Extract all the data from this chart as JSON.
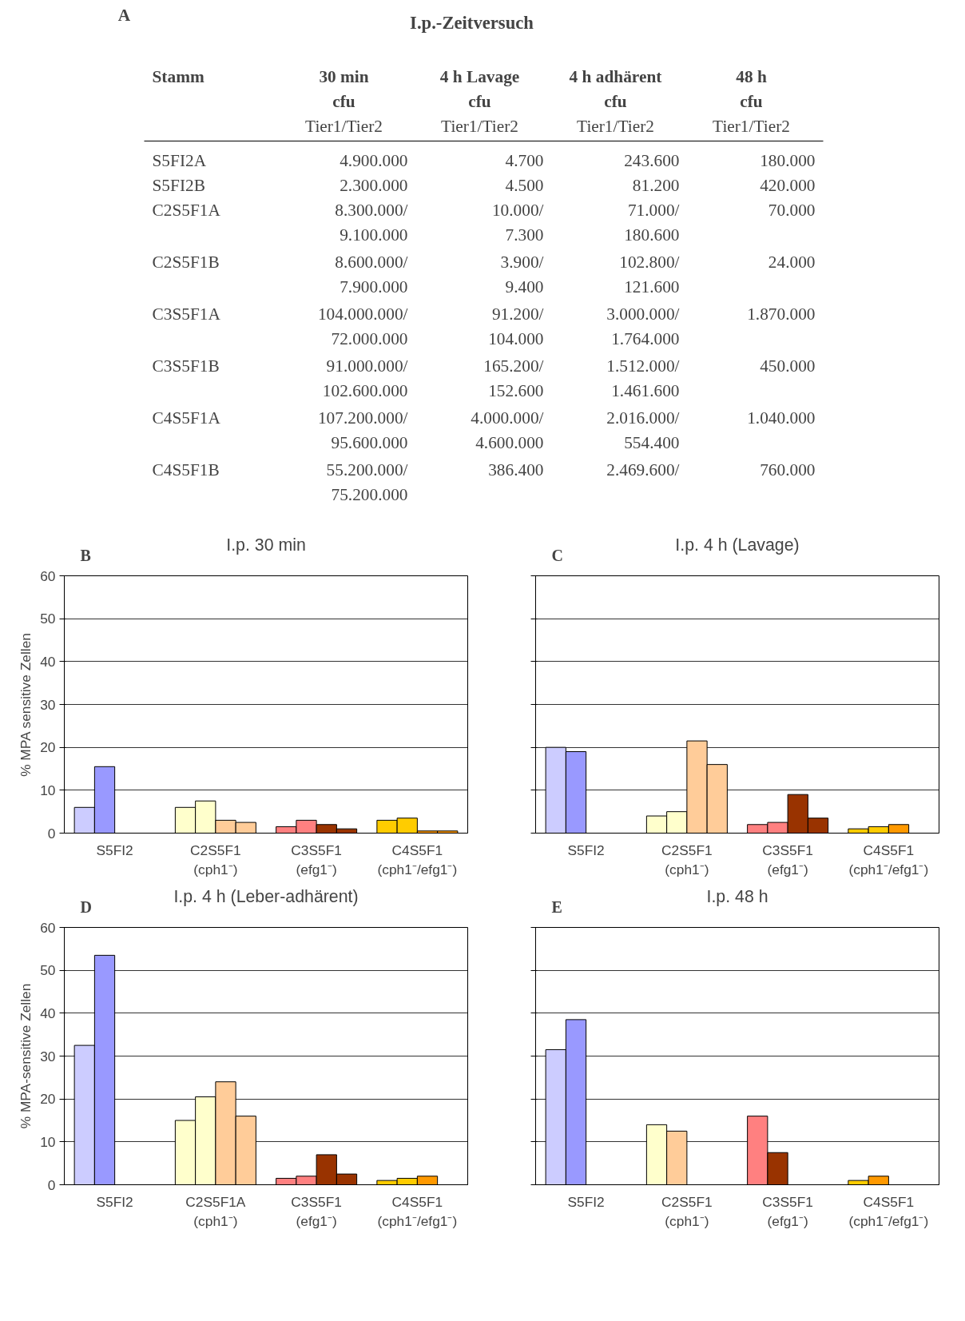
{
  "chart_data": [
    {
      "type": "other",
      "title": "I.p.-Zeitversuch",
      "annotations": [
        "A",
        "Stamm",
        "30 min\ncfu\nTier1/Tier2",
        "4 h Lavage\ncfu\nTier1/Tier2",
        "4 h adhärent\ncfu\nTier1/Tier2",
        "48 h\ncfu\nTier1/Tier2",
        "S5FI2A",
        "4.900.000",
        "4.700",
        "243.600",
        "180.000",
        "S5FI2B",
        "2.300.000",
        "4.500",
        "81.200",
        "420.000",
        "C2S5F1A",
        "8.300.000/\n9.100.000",
        "10.000/\n7.300",
        "71.000/\n180.600",
        "70.000",
        "C2S5F1B",
        "8.600.000/\n7.900.000",
        "3.900/\n9.400",
        "102.800/\n121.600",
        "24.000",
        "C3S5F1A",
        "104.000.000/\n72.000.000",
        "91.200/\n104.000",
        "3.000.000/\n1.764.000",
        "1.870.000",
        "C3S5F1B",
        "91.000.000/\n102.600.000",
        "165.200/\n152.600",
        "1.512.000/\n1.461.600",
        "450.000",
        "C4S5F1A",
        "107.200.000/\n95.600.000",
        "4.000.000/\n4.600.000",
        "2.016.000/\n554.400",
        "1.040.000",
        "C4S5F1B",
        "55.200.000/\n75.200.000",
        "386.400",
        "2.469.600/",
        "760.000"
      ]
    },
    {
      "type": "bar",
      "title": "I.p. 30 min",
      "ylabel": "% MPA sensitive Zellen",
      "annotations": [
        "B"
      ],
      "categories": [
        "S5FI2",
        "C2S5F1\n(cph1⁻)",
        "C3S5F1\n(efg1⁻)",
        "C4S5F1\n(cph1⁻/efg1⁻)"
      ],
      "ylim": [
        0,
        60
      ],
      "yticks": [
        0,
        10,
        20,
        30,
        40,
        50,
        60
      ],
      "grid": "y",
      "series": [
        {
          "values": [
            6,
            6,
            1.5,
            3
          ],
          "colors": [
            "#ccccff",
            "#ffffcc",
            "#ff8080",
            "#ffcc00"
          ]
        },
        {
          "values": [
            15.5,
            7.5,
            3,
            3.5
          ],
          "colors": [
            "#9999ff",
            "#ffffcc",
            "#ff8080",
            "#ffcc00"
          ]
        },
        {
          "values": [
            null,
            3,
            2,
            0.5
          ],
          "colors": [
            "#9999ff",
            "#ffcc99",
            "#993300",
            "#ff9900"
          ]
        },
        {
          "values": [
            null,
            2.5,
            1,
            0.5
          ],
          "colors": [
            "#9999ff",
            "#ffcc99",
            "#993300",
            "#ff9900"
          ]
        }
      ]
    },
    {
      "type": "bar",
      "title": "I.p. 4 h (Lavage)",
      "annotations": [
        "C"
      ],
      "categories": [
        "S5FI2",
        "C2S5F1\n(cph1⁻)",
        "C3S5F1\n(efg1⁻)",
        "C4S5F1\n(cph1⁻/efg1⁻)"
      ],
      "ylim": [
        0,
        60
      ],
      "yticks": [
        {
          "value": 0,
          "label": null
        },
        {
          "value": 10,
          "label": null
        },
        {
          "value": 20,
          "label": null
        },
        {
          "value": 30,
          "label": null
        },
        {
          "value": 40,
          "label": null
        },
        {
          "value": 50,
          "label": null
        },
        {
          "value": 60,
          "label": null
        }
      ],
      "grid": "y",
      "tick_labels": "x",
      "series": [
        {
          "values": [
            20,
            4,
            2,
            1
          ],
          "colors": [
            "#ccccff",
            "#ffffcc",
            "#ff8080",
            "#ffcc00"
          ]
        },
        {
          "values": [
            19,
            5,
            2.5,
            1.5
          ],
          "colors": [
            "#9999ff",
            "#ffffcc",
            "#ff8080",
            "#ffcc00"
          ]
        },
        {
          "values": [
            null,
            21.5,
            9,
            2
          ],
          "colors": [
            "#9999ff",
            "#ffcc99",
            "#993300",
            "#ff9900"
          ]
        },
        {
          "values": [
            null,
            16,
            3.5,
            null
          ],
          "colors": [
            "#9999ff",
            "#ffcc99",
            "#993300",
            "#ff9900"
          ]
        }
      ]
    },
    {
      "type": "bar",
      "title": "I.p. 4 h (Leber-adhärent)",
      "ylabel": "% MPA-sensitive Zellen",
      "annotations": [
        "D"
      ],
      "categories": [
        "S5FI2",
        "C2S5F1A\n(cph1⁻)",
        "C3S5F1\n(efg1⁻)",
        "C4S5F1\n(cph1⁻/efg1⁻)"
      ],
      "ylim": [
        0,
        60
      ],
      "yticks": [
        0,
        10,
        20,
        30,
        40,
        50,
        60
      ],
      "grid": "y",
      "series": [
        {
          "values": [
            32.5,
            15,
            1.5,
            1
          ],
          "colors": [
            "#ccccff",
            "#ffffcc",
            "#ff8080",
            "#ffcc00"
          ]
        },
        {
          "values": [
            53.5,
            20.5,
            2,
            1.5
          ],
          "colors": [
            "#9999ff",
            "#ffffcc",
            "#ff8080",
            "#ffcc00"
          ]
        },
        {
          "values": [
            null,
            24,
            7,
            2
          ],
          "colors": [
            "#9999ff",
            "#ffcc99",
            "#993300",
            "#ff9900"
          ]
        },
        {
          "values": [
            null,
            16,
            2.5,
            null
          ],
          "colors": [
            "#9999ff",
            "#ffcc99",
            "#993300",
            "#ff9900"
          ]
        }
      ]
    },
    {
      "type": "bar",
      "title": "I.p. 48 h",
      "annotations": [
        "E"
      ],
      "categories": [
        "S5FI2",
        "C2S5F1\n(cph1⁻)",
        "C3S5F1\n(efg1⁻)",
        "C4S5F1\n(cph1⁻/efg1⁻)"
      ],
      "ylim": [
        0,
        60
      ],
      "yticks": [
        {
          "value": 0,
          "label": null
        },
        {
          "value": 10,
          "label": null
        },
        {
          "value": 20,
          "label": null
        },
        {
          "value": 30,
          "label": null
        },
        {
          "value": 40,
          "label": null
        },
        {
          "value": 50,
          "label": null
        },
        {
          "value": 60,
          "label": null
        }
      ],
      "grid": "y",
      "tick_labels": "x",
      "series": [
        {
          "values": [
            31.5,
            14,
            16,
            1
          ],
          "colors": [
            "#ccccff",
            "#ffffcc",
            "#ff8080",
            "#ffcc00"
          ]
        },
        {
          "values": [
            38.5,
            12.5,
            7.5,
            2
          ],
          "colors": [
            "#9999ff",
            "#ffcc99",
            "#993300",
            "#ff9900"
          ]
        }
      ]
    }
  ]
}
